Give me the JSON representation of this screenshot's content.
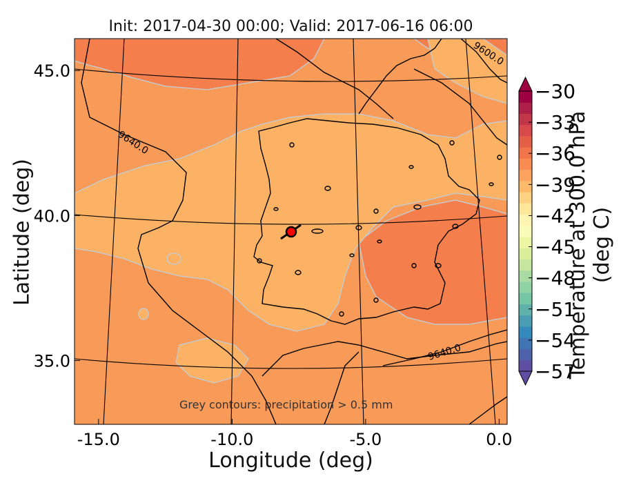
{
  "title": "Init: 2017-04-30 00:00; Valid: 2017-06-16 06:00",
  "x_axis": {
    "label": "Longitude (deg)",
    "ticks": [
      {
        "value": -15,
        "label": "-15.0"
      },
      {
        "value": -10,
        "label": "-10.0"
      },
      {
        "value": -5,
        "label": "-5.0"
      },
      {
        "value": 0,
        "label": "0.0"
      }
    ],
    "range": [
      -15.9,
      0.3
    ]
  },
  "y_axis": {
    "label": "Latitude (deg)",
    "ticks": [
      {
        "value": 35,
        "label": "35.0"
      },
      {
        "value": 40,
        "label": "40.0"
      },
      {
        "value": 45,
        "label": "45.0"
      }
    ],
    "range": [
      32.8,
      46.1
    ]
  },
  "colorbar": {
    "label": "Temperature at 300.0 hPa (deg C)",
    "range": [
      -57,
      -30
    ],
    "tick_labels": [
      "−30",
      "−33",
      "−36",
      "−39",
      "−42",
      "−45",
      "−48",
      "−51",
      "−54",
      "−57"
    ],
    "colors": [
      "#5e4fa2",
      "#4f61aa",
      "#3f75b4",
      "#3489bd",
      "#4a9db3",
      "#5fb2a9",
      "#74c6a5",
      "#8fd2a4",
      "#a9dca3",
      "#c4e69f",
      "#d9ef9b",
      "#edf7a3",
      "#fafdb8",
      "#fef6b0",
      "#fee79a",
      "#fed283",
      "#fdba6b",
      "#fca45f",
      "#f88c51",
      "#f1744a",
      "#e55f47",
      "#d8494b",
      "#c3364a",
      "#ad2047",
      "#9e0142"
    ]
  },
  "contour_labels": {
    "a": "9640.0",
    "b": "9600.0",
    "c": "9640.0"
  },
  "note": "Grey contours: precipitation > 0.5 mm",
  "marker": {
    "lon": -7.7,
    "lat": 39.35,
    "color": "#ff0000"
  },
  "field_colors": {
    "light": "#fbb265",
    "mid": "#f89a58",
    "dark": "#f47e4c",
    "precip_contour": "#c8c8c8"
  }
}
